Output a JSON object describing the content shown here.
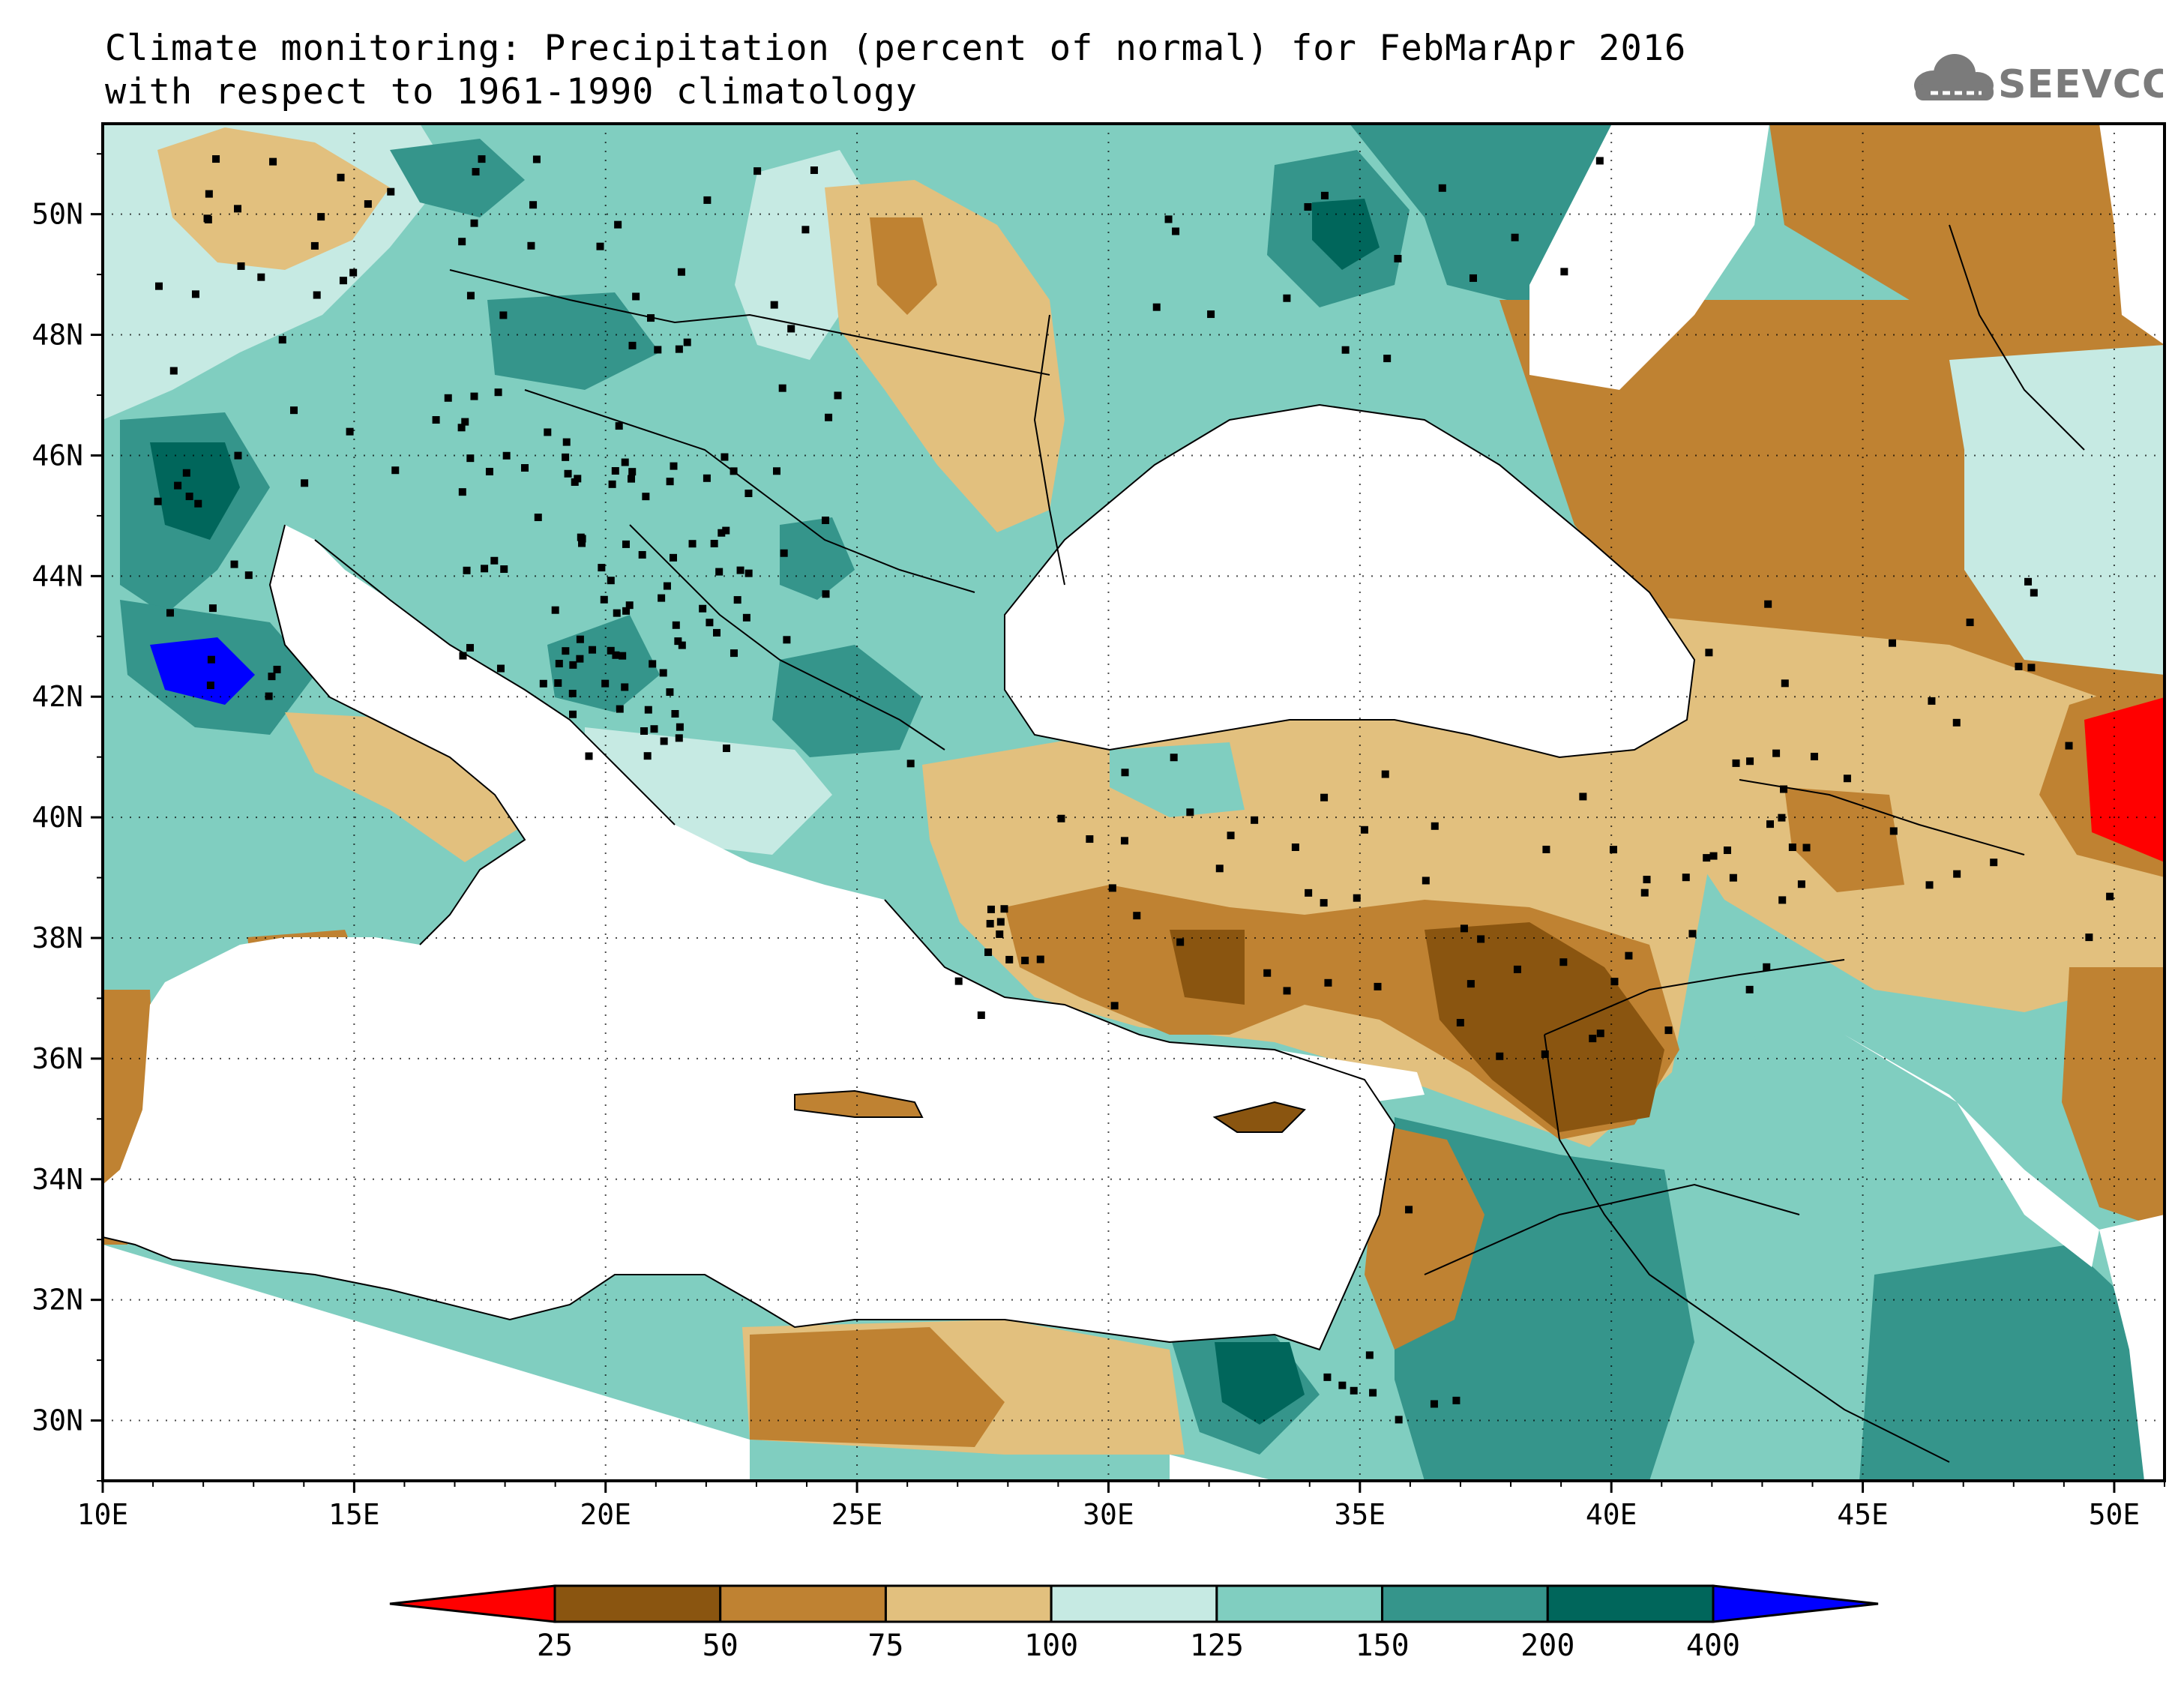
{
  "title": {
    "line1": "Climate monitoring: Precipitation (percent of normal) for FebMarApr 2016",
    "line2": "with respect to 1961-1990 climatology"
  },
  "logo": {
    "text": "SEEVCCC",
    "icon": "cloud-icon"
  },
  "map": {
    "lon_range": [
      10,
      51
    ],
    "lat_range": [
      29,
      51.5
    ],
    "lon_ticks": [
      10,
      15,
      20,
      25,
      30,
      35,
      40,
      45,
      50
    ],
    "lon_tick_labels": [
      "10E",
      "15E",
      "20E",
      "25E",
      "30E",
      "35E",
      "40E",
      "45E",
      "50E"
    ],
    "lat_ticks": [
      30,
      32,
      34,
      36,
      38,
      40,
      42,
      44,
      46,
      48,
      50
    ],
    "lat_tick_labels": [
      "30N",
      "32N",
      "34N",
      "36N",
      "38N",
      "40N",
      "42N",
      "44N",
      "46N",
      "48N",
      "50N"
    ],
    "grid": "dotted"
  },
  "colorbar": {
    "levels": [
      "25",
      "50",
      "75",
      "100",
      "125",
      "150",
      "200",
      "400"
    ],
    "colors": [
      "#ff0000",
      "#8a5510",
      "#bf8232",
      "#e2c07e",
      "#c6eae3",
      "#80cec0",
      "#35958b",
      "#00665b",
      "#0000ff"
    ],
    "orientation": "horizontal",
    "placement": "bottom"
  },
  "colors": {
    "sea": "#ffffff",
    "nodata": "#ffffff",
    "border": "#000000",
    "station": "#000000"
  }
}
